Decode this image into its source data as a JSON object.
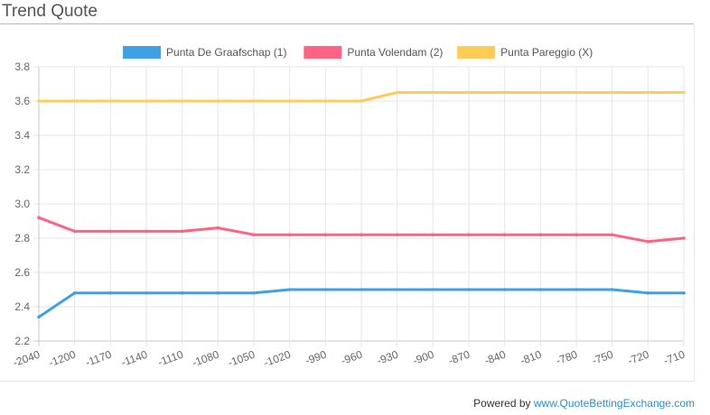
{
  "page": {
    "title": "Trend Quote",
    "footer": {
      "prefix": "Powered by",
      "link_text": "www.QuoteBettingExchange.com"
    }
  },
  "chart_data": {
    "type": "line",
    "title": "",
    "xlabel": "",
    "ylabel": "",
    "x": [
      -2040,
      -1200,
      -1170,
      -1140,
      -1110,
      -1080,
      -1050,
      -1020,
      -990,
      -960,
      -930,
      -900,
      -870,
      -840,
      -810,
      -780,
      -750,
      -720,
      -710
    ],
    "x_tick_labels": [
      "-2040",
      "-1200",
      "-1170",
      "-1140",
      "-1110",
      "-1080",
      "-1050",
      "-1020",
      "-990",
      "-960",
      "-930",
      "-900",
      "-870",
      "-840",
      "-810",
      "-780",
      "-750",
      "-720",
      "-710"
    ],
    "ylim": [
      2.2,
      3.8
    ],
    "y_ticks": [
      2.2,
      2.4,
      2.6,
      2.8,
      3.0,
      3.2,
      3.4,
      3.6,
      3.8
    ],
    "y_tick_labels": [
      "2.2",
      "2.4",
      "2.6",
      "2.8",
      "3.0",
      "3.2",
      "3.4",
      "3.6",
      "3.8"
    ],
    "grid": true,
    "legend_position": "top-center",
    "series": [
      {
        "name": "Punta De Graafschap (1)",
        "color": "#3ea1e5",
        "values": [
          2.34,
          2.48,
          2.48,
          2.48,
          2.48,
          2.48,
          2.48,
          2.5,
          2.5,
          2.5,
          2.5,
          2.5,
          2.5,
          2.5,
          2.5,
          2.5,
          2.5,
          2.48,
          2.48
        ]
      },
      {
        "name": "Punta Volendam (2)",
        "color": "#ff6384",
        "values": [
          2.92,
          2.84,
          2.84,
          2.84,
          2.84,
          2.86,
          2.82,
          2.82,
          2.82,
          2.82,
          2.82,
          2.82,
          2.82,
          2.82,
          2.82,
          2.82,
          2.82,
          2.78,
          2.8
        ]
      },
      {
        "name": "Punta Pareggio (X)",
        "color": "#ffcd56",
        "values": [
          3.6,
          3.6,
          3.6,
          3.6,
          3.6,
          3.6,
          3.6,
          3.6,
          3.6,
          3.6,
          3.65,
          3.65,
          3.65,
          3.65,
          3.65,
          3.65,
          3.65,
          3.65,
          3.65
        ]
      }
    ]
  }
}
